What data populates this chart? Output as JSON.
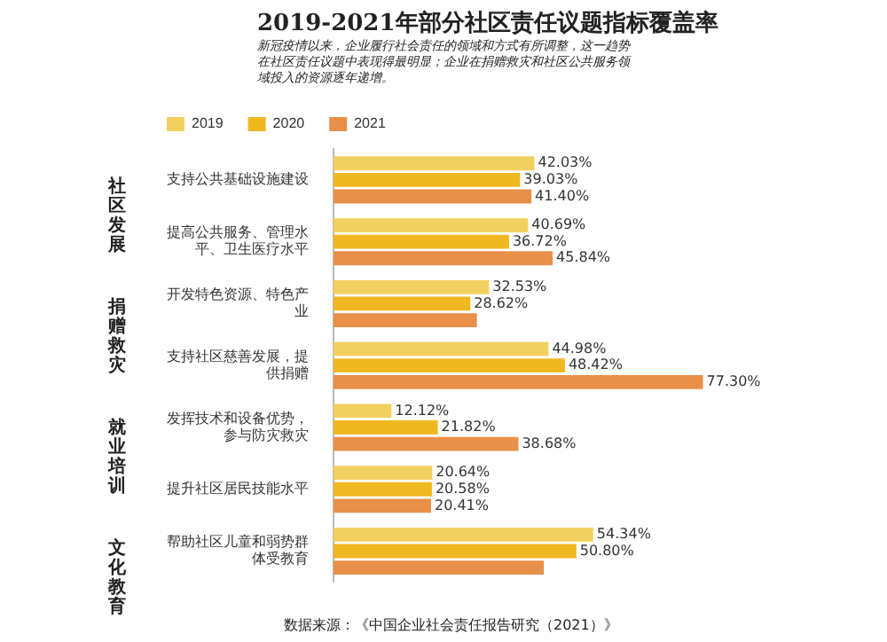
{
  "chart_data": {
    "type": "bar",
    "orientation": "horizontal",
    "title": "2019-2021年部分社区责任议题指标覆盖率",
    "subtitle": "新冠疫情以来，企业履行社会责任的领域和方式有所调整，这一趋势在社区责任议题中表现得最明显；企业在捐赠救灾和社区公共服务领域投入的资源逐年递增。",
    "categories": [
      "支持公共基础设施建设",
      "提高公共服务、管理水平、卫生医疗水平",
      "开发特色资源、特色产业",
      "支持社区慈善发展，提供捐赠",
      "发挥技术和设备优势，参与防灾救灾",
      "提升社区居民技能水平",
      "帮助社区儿童和弱势群体受教育"
    ],
    "series": [
      {
        "name": "2019",
        "color": "#f2d060",
        "values": [
          42.03,
          40.69,
          32.53,
          44.98,
          12.12,
          20.64,
          54.34
        ],
        "value_labels": [
          "42.03%",
          "40.69%",
          "32.53%",
          "44.98%",
          "12.12%",
          "20.64%",
          "54.34%"
        ]
      },
      {
        "name": "2020",
        "color": "#f0b820",
        "values": [
          39.03,
          36.72,
          28.62,
          48.42,
          21.82,
          20.58,
          50.8
        ],
        "value_labels": [
          "39.03%",
          "36.72%",
          "28.62%",
          "48.42%",
          "21.82%",
          "20.58%",
          "50.80%"
        ]
      },
      {
        "name": "2021",
        "color": "#e8904a",
        "values": [
          41.4,
          45.84,
          30,
          77.3,
          38.68,
          20.41,
          44
        ],
        "value_labels": [
          "41.40%",
          "45.84%",
          null,
          "77.30%",
          "38.68%",
          "20.41%",
          null
        ]
      }
    ],
    "annotations": [
      "社区发展",
      "捐赠救灾",
      "就业培训",
      "文化教育",
      "数据来源：《中国企业社会责任报告研究（2021）》"
    ],
    "legend": "top left",
    "grid": false,
    "tick_labels": "y"
  }
}
